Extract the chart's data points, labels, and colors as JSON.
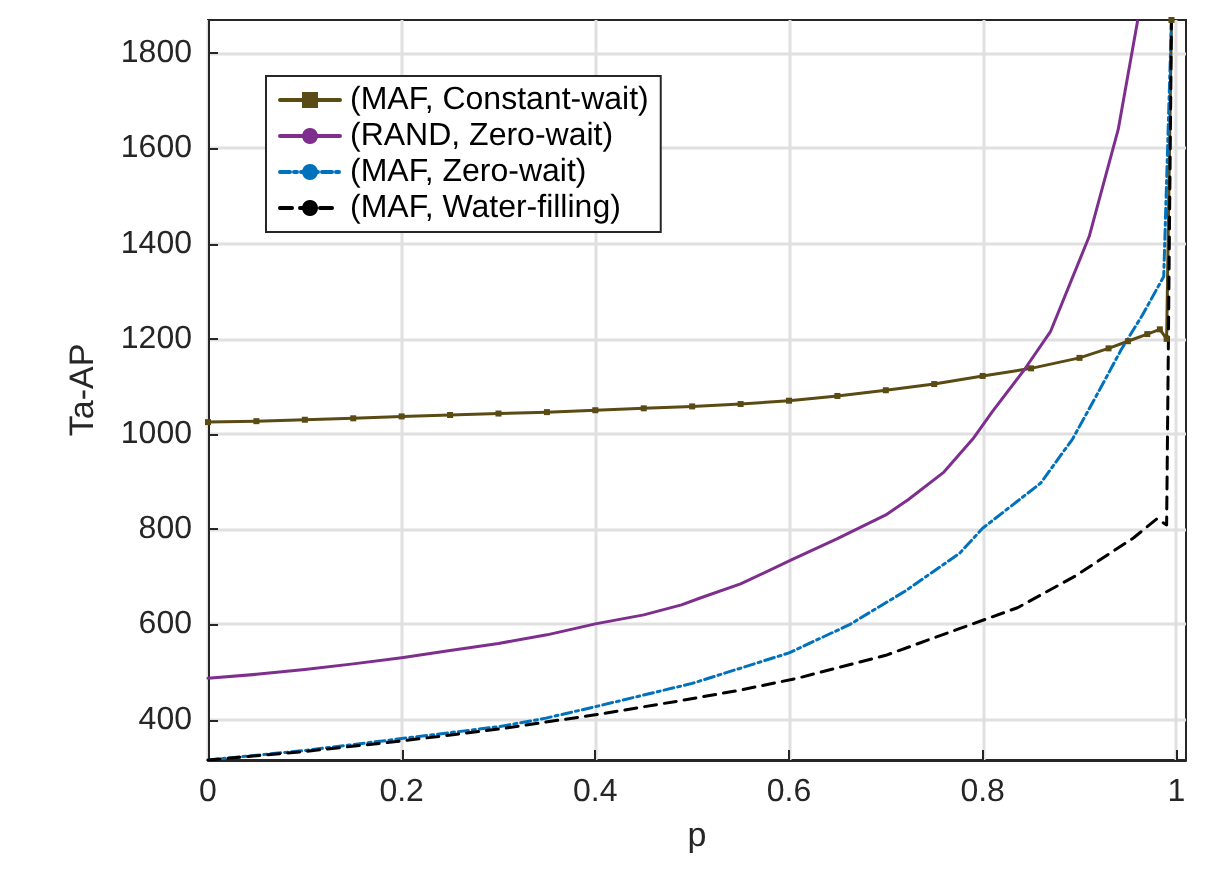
{
  "chart_data": {
    "type": "line",
    "xlabel": "p",
    "ylabel": "Ta-AP",
    "xlim": [
      0,
      1.01
    ],
    "ylim": [
      315,
      1870
    ],
    "xticks": [
      0,
      0.2,
      0.4,
      0.6,
      0.8,
      1
    ],
    "yticks": [
      400,
      600,
      800,
      1000,
      1200,
      1400,
      1600,
      1800
    ],
    "grid": true,
    "legend": "top left",
    "series": [
      {
        "name": "(MAF, Constant-wait)",
        "color": "#5a4a14",
        "marker": "square",
        "line_style": "solid",
        "x": [
          0,
          0.05,
          0.1,
          0.15,
          0.2,
          0.25,
          0.3,
          0.35,
          0.4,
          0.45,
          0.5,
          0.55,
          0.6,
          0.65,
          0.7,
          0.75,
          0.8,
          0.85,
          0.9,
          0.93,
          0.95,
          0.97,
          0.983,
          0.99,
          0.995
        ],
        "values": [
          1025,
          1027,
          1030,
          1033,
          1037,
          1040,
          1043,
          1046,
          1050,
          1054,
          1058,
          1063,
          1070,
          1080,
          1092,
          1105,
          1122,
          1138,
          1160,
          1180,
          1195,
          1210,
          1220,
          1200,
          1870
        ]
      },
      {
        "name": "(RAND, Zero-wait)",
        "color": "#7e2f8e",
        "line_style": "solid",
        "x": [
          0,
          0.05,
          0.1,
          0.15,
          0.2,
          0.25,
          0.3,
          0.35,
          0.4,
          0.45,
          0.489,
          0.509,
          0.55,
          0.603,
          0.65,
          0.7,
          0.723,
          0.76,
          0.79,
          0.81,
          0.843,
          0.87,
          0.91,
          0.94,
          0.96
        ],
        "values": [
          487,
          495,
          505,
          517,
          530,
          545,
          560,
          578,
          601,
          620,
          641,
          656,
          685,
          736,
          780,
          830,
          862,
          920,
          990,
          1047,
          1135,
          1215,
          1415,
          1640,
          1868
        ]
      },
      {
        "name": "(MAF, Zero-wait)",
        "color": "#0072bd",
        "line_style": "dashdot",
        "x": [
          0,
          0.1,
          0.2,
          0.3,
          0.349,
          0.4,
          0.5,
          0.6,
          0.663,
          0.72,
          0.776,
          0.8,
          0.86,
          0.893,
          0.92,
          0.943,
          0.965,
          0.987,
          0.995
        ],
        "values": [
          315,
          335,
          360,
          385,
          403,
          427,
          476,
          540,
          600,
          670,
          749,
          802,
          897,
          990,
          1090,
          1177,
          1250,
          1331,
          1870
        ]
      },
      {
        "name": "(MAF, Water-filling)",
        "color": "#000000",
        "line_style": "dashed",
        "x": [
          0,
          0.1,
          0.2,
          0.3,
          0.4,
          0.489,
          0.55,
          0.609,
          0.7,
          0.776,
          0.836,
          0.896,
          0.956,
          0.98,
          0.99,
          0.995
        ],
        "values": [
          315,
          333,
          355,
          380,
          410,
          440,
          462,
          487,
          535,
          591,
          635,
          702,
          782,
          822,
          809,
          1870
        ]
      }
    ]
  }
}
